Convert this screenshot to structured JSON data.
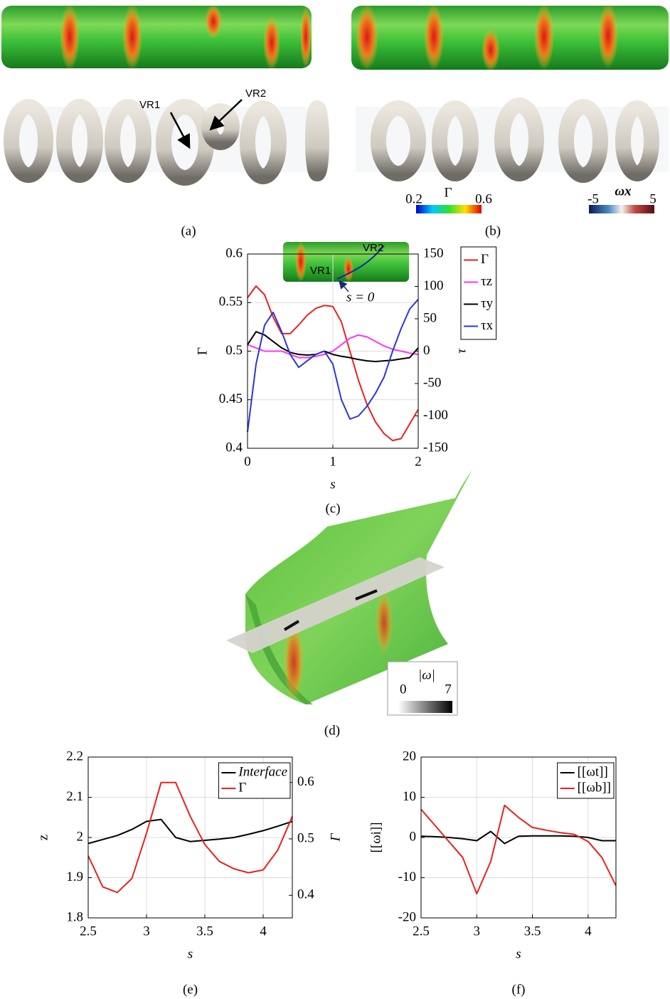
{
  "chart_data": [
    {
      "type": "line",
      "caption": "(c)",
      "xlabel": "s",
      "ylabel": "Γ",
      "y2label": "τ",
      "x": [
        0,
        0.1,
        0.2,
        0.3,
        0.4,
        0.5,
        0.6,
        0.7,
        0.8,
        0.9,
        1.0,
        1.1,
        1.2,
        1.3,
        1.4,
        1.5,
        1.6,
        1.7,
        1.8,
        1.9,
        2.0
      ],
      "xlim": [
        0,
        2
      ],
      "xticks": [
        0,
        1,
        2
      ],
      "ylim": [
        0.4,
        0.6
      ],
      "yticks": [
        0.4,
        0.45,
        0.5,
        0.55,
        0.6
      ],
      "y2lim": [
        -150,
        150
      ],
      "y2ticks": [
        -150,
        -100,
        -50,
        0,
        50,
        100,
        150
      ],
      "grid": true,
      "legend": "outside right",
      "series": [
        {
          "name": "Γ",
          "color": "#e8211f",
          "values": [
            0.555,
            0.567,
            0.558,
            0.535,
            0.518,
            0.518,
            0.527,
            0.537,
            0.544,
            0.547,
            0.546,
            0.53,
            0.5,
            0.47,
            0.445,
            0.427,
            0.415,
            0.408,
            0.41,
            0.425,
            0.44
          ]
        },
        {
          "name": "τz",
          "color": "#ff33ff",
          "axis": "y2",
          "values": [
            10,
            5,
            0,
            0,
            0,
            -5,
            -10,
            -10,
            -8,
            -5,
            0,
            10,
            20,
            25,
            22,
            15,
            8,
            3,
            0,
            -3,
            -5
          ]
        },
        {
          "name": "τy",
          "color": "#000000",
          "axis": "y2",
          "values": [
            10,
            30,
            25,
            15,
            5,
            -2,
            -5,
            -6,
            -5,
            0,
            -5,
            -8,
            -10,
            -13,
            -15,
            -16,
            -15,
            -14,
            -12,
            -10,
            5
          ]
        },
        {
          "name": "τx",
          "color": "#2b35d8",
          "axis": "y2",
          "values": [
            -125,
            -20,
            40,
            60,
            30,
            -5,
            -25,
            -15,
            -5,
            0,
            -20,
            -75,
            -105,
            -100,
            -85,
            -65,
            -40,
            0,
            35,
            65,
            80
          ]
        }
      ],
      "annotations": {
        "vr1": "VR1",
        "vr2": "VR2",
        "origin": "s = 0"
      }
    },
    {
      "type": "line",
      "caption": "(e)",
      "xlabel": "s",
      "ylabel": "z",
      "y2label": "Γ",
      "x": [
        2.5,
        2.625,
        2.75,
        2.875,
        3.0,
        3.125,
        3.25,
        3.375,
        3.5,
        3.625,
        3.75,
        3.875,
        4.0,
        4.125,
        4.25
      ],
      "xlim": [
        2.5,
        4.25
      ],
      "xticks": [
        2.5,
        3,
        3.5,
        4
      ],
      "ylim": [
        1.8,
        2.2
      ],
      "yticks": [
        1.8,
        1.9,
        2,
        2.1,
        2.2
      ],
      "y2lim": [
        0.36,
        0.645
      ],
      "y2ticks": [
        0.4,
        0.5,
        0.6
      ],
      "grid": true,
      "legend": "upper right",
      "series": [
        {
          "name": "Interface",
          "color": "#000000",
          "values": [
            1.985,
            1.995,
            2.005,
            2.02,
            2.04,
            2.045,
            2.0,
            1.99,
            1.993,
            1.996,
            2.0,
            2.008,
            2.017,
            2.028,
            2.04
          ]
        },
        {
          "name": "Γ",
          "color": "#e8211f",
          "axis": "y2",
          "values": [
            0.47,
            0.415,
            0.405,
            0.43,
            0.51,
            0.6,
            0.6,
            0.54,
            0.49,
            0.46,
            0.447,
            0.44,
            0.445,
            0.48,
            0.54
          ]
        }
      ]
    },
    {
      "type": "line",
      "caption": "(f)",
      "xlabel": "s",
      "ylabel": "[[ωi]]",
      "x": [
        2.5,
        2.625,
        2.75,
        2.875,
        3.0,
        3.125,
        3.25,
        3.375,
        3.5,
        3.625,
        3.75,
        3.875,
        4.0,
        4.125,
        4.25
      ],
      "xlim": [
        2.5,
        4.25
      ],
      "xticks": [
        2.5,
        3,
        3.5,
        4
      ],
      "ylim": [
        -20,
        20
      ],
      "yticks": [
        -20,
        -10,
        0,
        10,
        20
      ],
      "grid": true,
      "legend": "upper right",
      "series": [
        {
          "name": "[[ωt]]",
          "color": "#000000",
          "values": [
            0.3,
            0.2,
            0,
            -0.3,
            -0.8,
            1.5,
            -1.5,
            0.3,
            0.4,
            0.4,
            0.4,
            0.3,
            0,
            -0.8,
            -0.8
          ]
        },
        {
          "name": "[[ωb]]",
          "color": "#e8211f",
          "values": [
            7,
            3,
            -1,
            -5,
            -14,
            -6,
            8,
            5,
            2.5,
            1.8,
            1.2,
            0.8,
            -1,
            -5,
            -12
          ]
        }
      ]
    }
  ],
  "figure": {
    "captions": {
      "a": "(a)",
      "b": "(b)",
      "d": "(d)"
    },
    "annotations": {
      "vr1": "VR1",
      "vr2": "VR2"
    },
    "colorbars": {
      "gamma": {
        "min": 0.2,
        "label": "Γ",
        "max": 0.6
      },
      "omega_x": {
        "min": -5,
        "label": "ωx",
        "max": 5
      },
      "omega": {
        "label": "|ω|",
        "min": 0,
        "max": 7
      }
    }
  }
}
